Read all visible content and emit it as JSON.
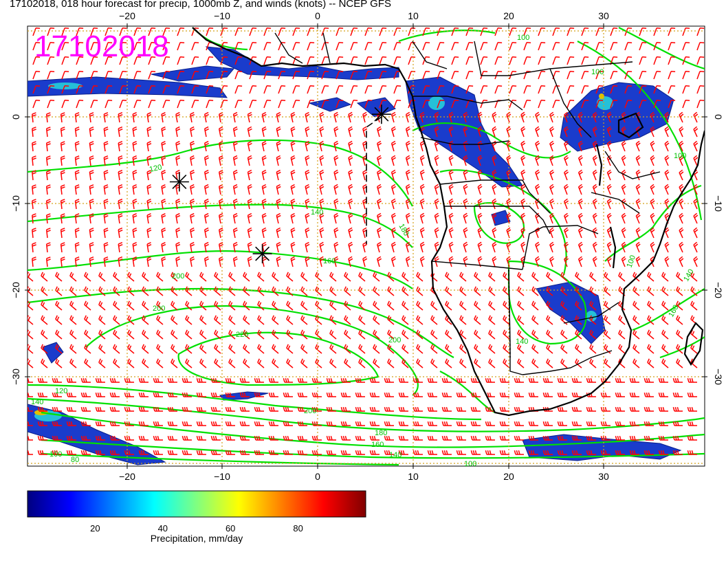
{
  "title": "17102018, 018 hour forecast for precip, 1000mb Z, and winds (knots) -- NCEP GFS",
  "stamp": "17102018",
  "colors": {
    "stamp": "#ff00ff",
    "contour": "#00e000",
    "wind": "#ff0000",
    "grid": "#d4a017",
    "coast": "#000000",
    "land": "#ffffff",
    "axis": "#000000"
  },
  "axes": {
    "lon_ticks": [
      "−20",
      "−10",
      "0",
      "10",
      "20",
      "30"
    ],
    "lat_ticks": [
      "0",
      "−10",
      "−20",
      "−30"
    ]
  },
  "contour_labels": [
    "100",
    "100",
    "100",
    "120",
    "140",
    "160",
    "180",
    "200",
    "200",
    "200",
    "220",
    "200",
    "180",
    "160",
    "140",
    "120",
    "100",
    "80",
    "140",
    "100",
    "140",
    "160",
    "140",
    "100"
  ],
  "markers": [
    {
      "lon": -14.5,
      "lat": -7.5
    },
    {
      "lon": -5.8,
      "lat": -15.8
    },
    {
      "lon": 6.7,
      "lat": 0.3
    }
  ],
  "colorbar": {
    "label": "Precipitation, mm/day",
    "ticks": [
      "20",
      "40",
      "60",
      "80"
    ],
    "tick_values": [
      20,
      40,
      60,
      80
    ],
    "min": 0,
    "max": 100,
    "colors": [
      "#000080",
      "#0000ff",
      "#0080ff",
      "#00ffff",
      "#80ff80",
      "#ffff00",
      "#ff8000",
      "#ff0000",
      "#800000"
    ]
  }
}
